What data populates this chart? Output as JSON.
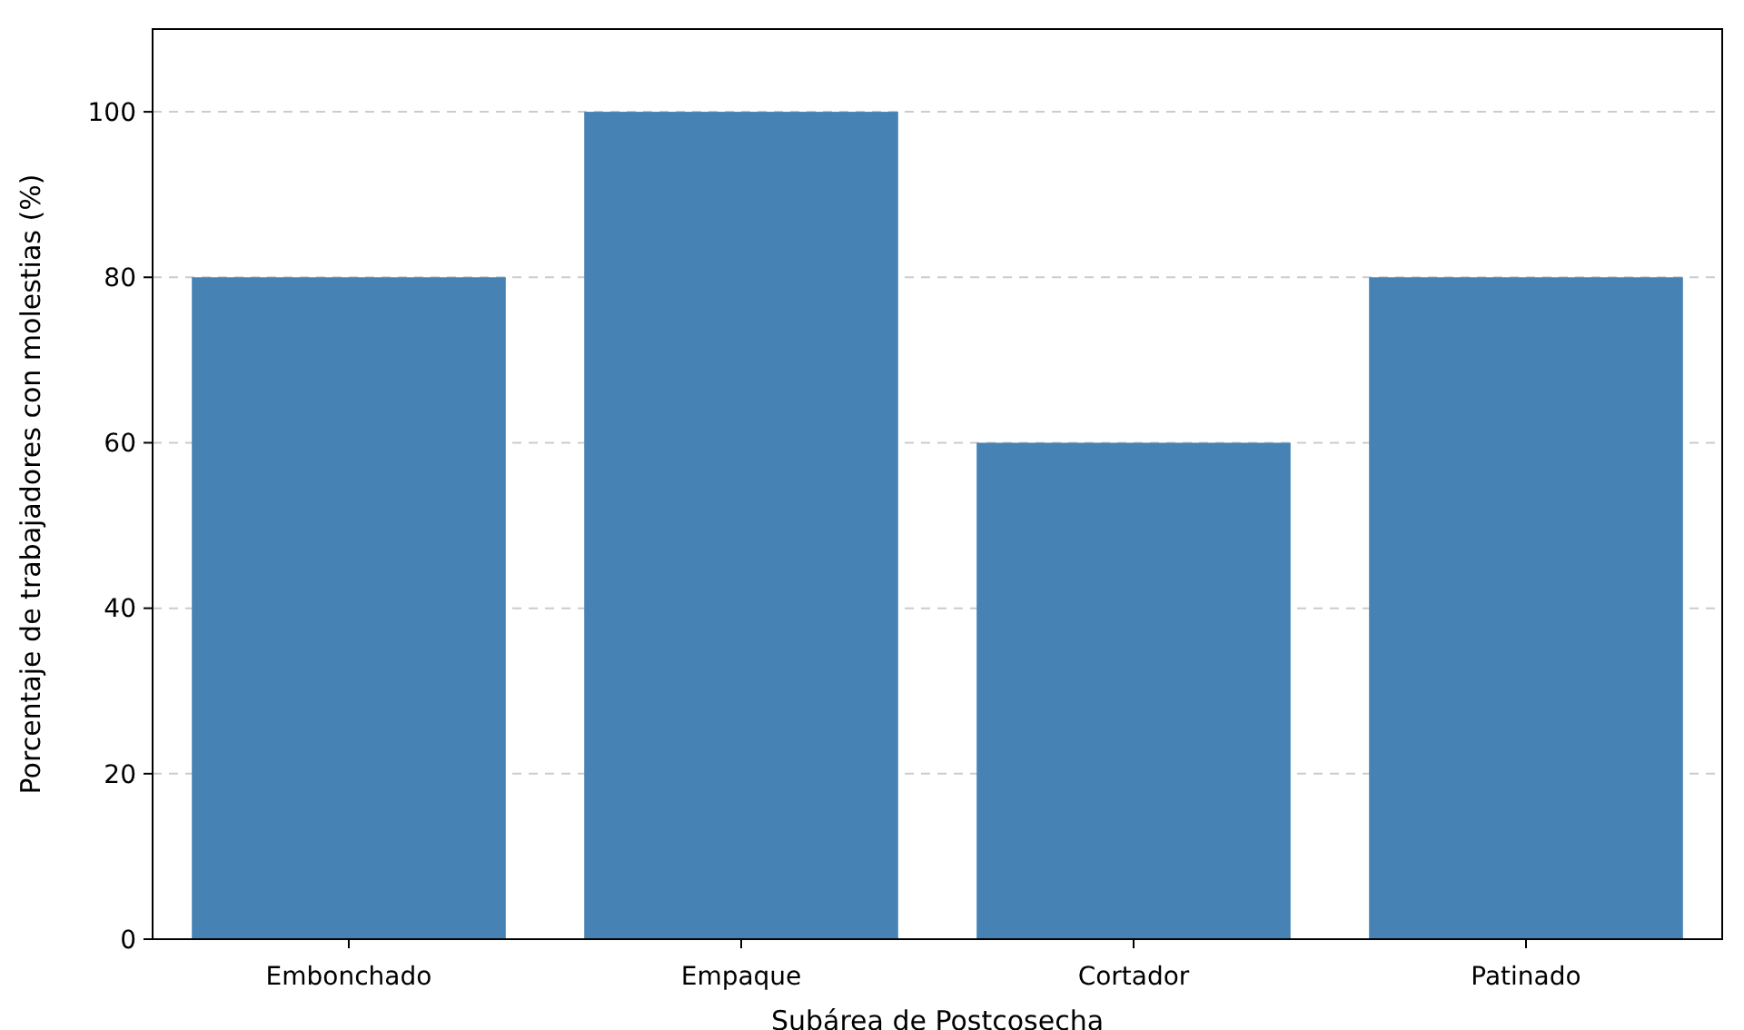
{
  "chart_data": {
    "type": "bar",
    "xlabel": "Subárea de Postcosecha",
    "ylabel": "Porcentaje de trabajadores con molestias (%)",
    "categories": [
      "Embonchado",
      "Empaque",
      "Cortador",
      "Patinado"
    ],
    "values": [
      80,
      100,
      60,
      80
    ],
    "color": "#4682b4",
    "ylim": [
      0,
      110
    ],
    "yticks": [
      0,
      20,
      40,
      60,
      80,
      100
    ],
    "grid": "y"
  }
}
